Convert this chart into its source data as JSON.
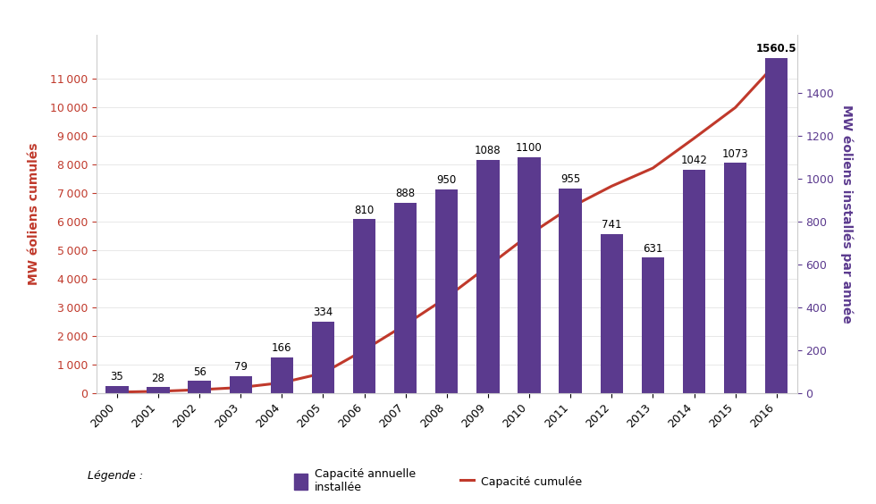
{
  "years": [
    2000,
    2001,
    2002,
    2003,
    2004,
    2005,
    2006,
    2007,
    2008,
    2009,
    2010,
    2011,
    2012,
    2013,
    2014,
    2015,
    2016
  ],
  "annual_mw": [
    35,
    28,
    56,
    79,
    166,
    334,
    810,
    888,
    950,
    1088,
    1100,
    955,
    741,
    631,
    1042,
    1073,
    1560.5
  ],
  "cumulative_mw": [
    35,
    63,
    119,
    198,
    364,
    698,
    1508,
    2396,
    3346,
    4434,
    5534,
    6489,
    7230,
    7861,
    8903,
    9976,
    11536.5
  ],
  "bar_color": "#5b3a8e",
  "line_color": "#c0392b",
  "left_ylabel": "MW éoliens cumulés",
  "right_ylabel": "MW éoliens installés par année",
  "left_ylabel_color": "#c0392b",
  "right_ylabel_color": "#5b3a8e",
  "ylim_left": [
    0,
    12500
  ],
  "ylim_right": [
    0,
    1667
  ],
  "left_yticks": [
    0,
    1000,
    2000,
    3000,
    4000,
    5000,
    6000,
    7000,
    8000,
    9000,
    10000,
    11000
  ],
  "right_yticks": [
    0,
    200,
    400,
    600,
    800,
    1000,
    1200,
    1400
  ],
  "legend_label_bar": "Capacité annuelle\ninstallée",
  "legend_label_line": "Capacité cumulée",
  "legend_prefix": "Légende :",
  "background_color": "#ffffff",
  "bar_width": 0.55,
  "label_fontsize": 8.5
}
